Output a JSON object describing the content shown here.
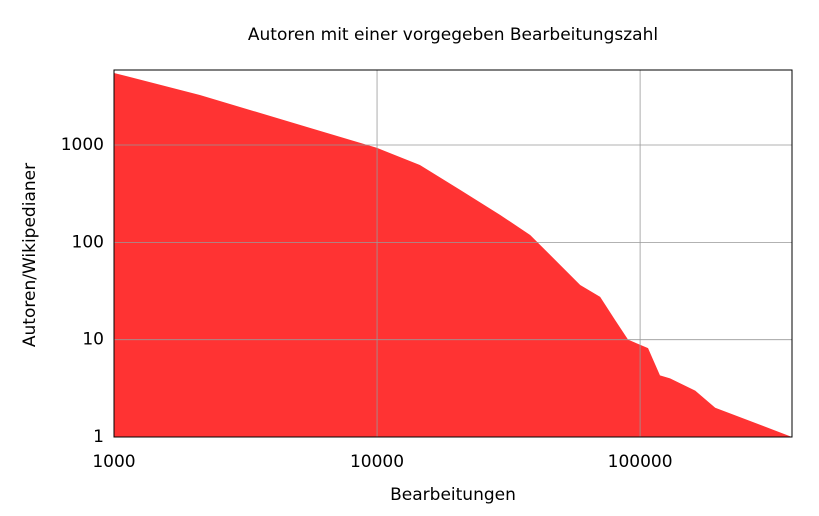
{
  "chart_data": {
    "type": "area",
    "title": "Autoren mit einer vorgegeben Bearbeitungszahl",
    "x_label": "Bearbeitungen",
    "y_label": "Autoren/Wikipedianer",
    "x": [
      1000,
      2120,
      5090,
      10000,
      14550,
      20700,
      29400,
      38200,
      49700,
      59200,
      70500,
      80400,
      90000,
      107200,
      119000,
      130000,
      162000,
      193000,
      378000
    ],
    "values": [
      5500,
      3270,
      1610,
      935,
      624,
      346,
      191,
      119,
      58.6,
      36.5,
      27.5,
      15.9,
      10,
      8.2,
      4.3,
      4.0,
      3.0,
      2.0,
      1
    ],
    "color": "#ff3333",
    "xlim": [
      1000,
      378000
    ],
    "ylim": [
      1,
      5900
    ],
    "xticks": [
      1000,
      10000,
      100000
    ],
    "yticks": [
      1,
      10,
      100,
      1000
    ],
    "xscale": "log",
    "yscale": "log",
    "grid": true
  }
}
